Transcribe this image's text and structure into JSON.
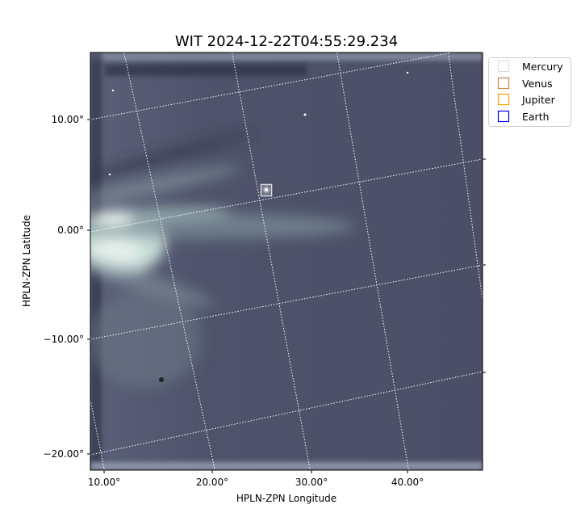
{
  "chart_data": {
    "type": "heatmap",
    "title": "WIT 2024-12-22T04:55:29.234",
    "xlabel": "HPLN-ZPN Longitude",
    "ylabel": "HPLN-ZPN Latitude",
    "x_ticks": [
      "10.00°",
      "20.00°",
      "30.00°",
      "40.00°"
    ],
    "y_ticks": [
      "10.00°",
      "0.00°",
      "−10.00°",
      "−20.00°"
    ],
    "grid": true,
    "colormap": "bone",
    "legend": {
      "placement": "outside-top-right",
      "entries": [
        {
          "label": "Mercury",
          "color": "#dddddd"
        },
        {
          "label": "Venus",
          "color": "#cd853f"
        },
        {
          "label": "Jupiter",
          "color": "#ffa500"
        },
        {
          "label": "Earth",
          "color": "#0000ff"
        }
      ]
    },
    "markers": [
      {
        "name": "Mercury",
        "lon": 25.5,
        "lat": 3.5
      }
    ]
  }
}
